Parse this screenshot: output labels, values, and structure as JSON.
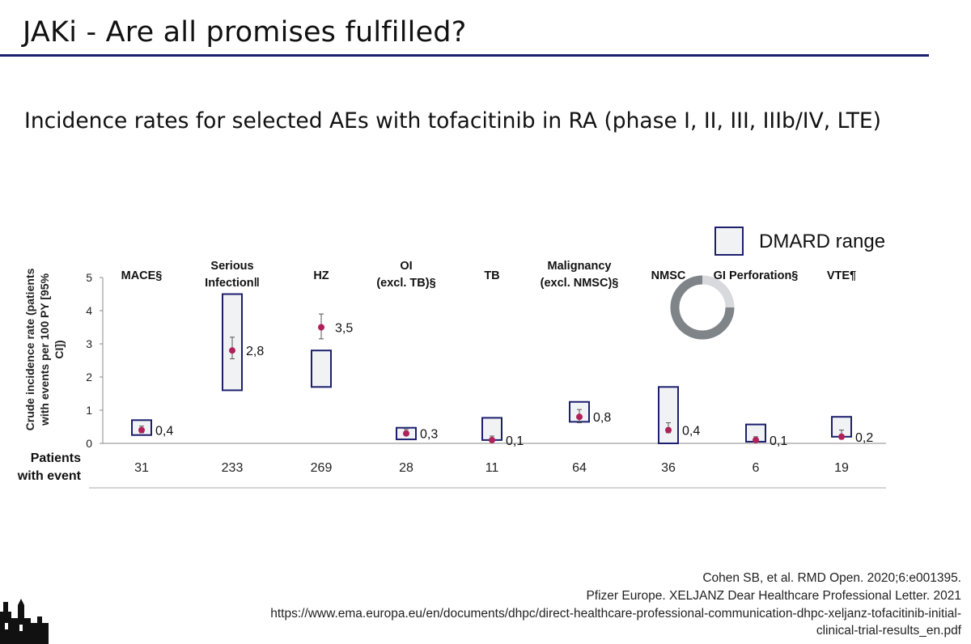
{
  "slide": {
    "title": "JAKi - Are all promises fulfilled?",
    "subtitle": "Incidence rates for selected AEs with tofacitinib in RA (phase I, II, III, IIIb/IV, LTE)"
  },
  "chart_data": {
    "type": "range-point",
    "title": "Incidence rates for selected AEs with tofacitinib in RA (phase I, II, III, IIIb/IV, LTE)",
    "ylabel": "Crude incidence rate (patients with events per 100 PY [95% CI])",
    "ylim": [
      0,
      5
    ],
    "yticks": [
      "0",
      "1",
      "2",
      "3",
      "4",
      "5"
    ],
    "legend_label": "DMARD range",
    "legend_position": "top-right",
    "row_label": "Patients with event",
    "categories": [
      {
        "label_lines": [
          "MACE§"
        ],
        "value": 0.4,
        "value_label": "0,4",
        "ci": [
          0.32,
          0.52
        ],
        "dmard_range": [
          0.25,
          0.7
        ],
        "patients": "31"
      },
      {
        "label_lines": [
          "Serious",
          "Infection‖"
        ],
        "value": 2.8,
        "value_label": "2,8",
        "ci": [
          2.55,
          3.2
        ],
        "dmard_range": [
          1.6,
          4.5
        ],
        "patients": "233"
      },
      {
        "label_lines": [
          "HZ"
        ],
        "value": 3.5,
        "value_label": "3,5",
        "ci": [
          3.15,
          3.9
        ],
        "dmard_range": [
          1.7,
          2.8
        ],
        "patients": "269"
      },
      {
        "label_lines": [
          "OI",
          "(excl. TB)§"
        ],
        "value": 0.3,
        "value_label": "0,3",
        "ci": [
          0.24,
          0.42
        ],
        "dmard_range": [
          0.12,
          0.47
        ],
        "patients": "28"
      },
      {
        "label_lines": [
          "TB"
        ],
        "value": 0.1,
        "value_label": "0,1",
        "ci": [
          0.07,
          0.22
        ],
        "dmard_range": [
          0.1,
          0.77
        ],
        "patients": "11"
      },
      {
        "label_lines": [
          "Malignancy",
          "(excl. NMSC)§"
        ],
        "value": 0.8,
        "value_label": "0,8",
        "ci": [
          0.62,
          1.02
        ],
        "dmard_range": [
          0.65,
          1.25
        ],
        "patients": "64"
      },
      {
        "label_lines": [
          "NMSC"
        ],
        "value": 0.4,
        "value_label": "0,4",
        "ci": [
          0.32,
          0.62
        ],
        "dmard_range": [
          0.0,
          1.7
        ],
        "patients": "36"
      },
      {
        "label_lines": [
          "GI Perforation§"
        ],
        "value": 0.1,
        "value_label": "0,1",
        "ci": [
          0.05,
          0.2
        ],
        "dmard_range": [
          0.05,
          0.57
        ],
        "patients": "6"
      },
      {
        "label_lines": [
          "VTE¶"
        ],
        "value": 0.2,
        "value_label": "0,2",
        "ci": [
          0.13,
          0.4
        ],
        "dmard_range": [
          0.2,
          0.8
        ],
        "patients": "19"
      }
    ]
  },
  "references": [
    "Cohen SB, et al. RMD Open. 2020;6:e001395.",
    "Pfizer Europe. XELJANZ Dear Healthcare Professional Letter. 2021",
    "https://www.ema.europa.eu/en/documents/dhpc/direct-healthcare-professional-communication-dhpc-xeljanz-tofacitinib-initial-",
    "clinical-trial-results_en.pdf"
  ],
  "colors": {
    "navy": "#1c1f6e",
    "point": "#b0205a",
    "box_fill": "#f1f2f4",
    "axis": "#888888"
  }
}
